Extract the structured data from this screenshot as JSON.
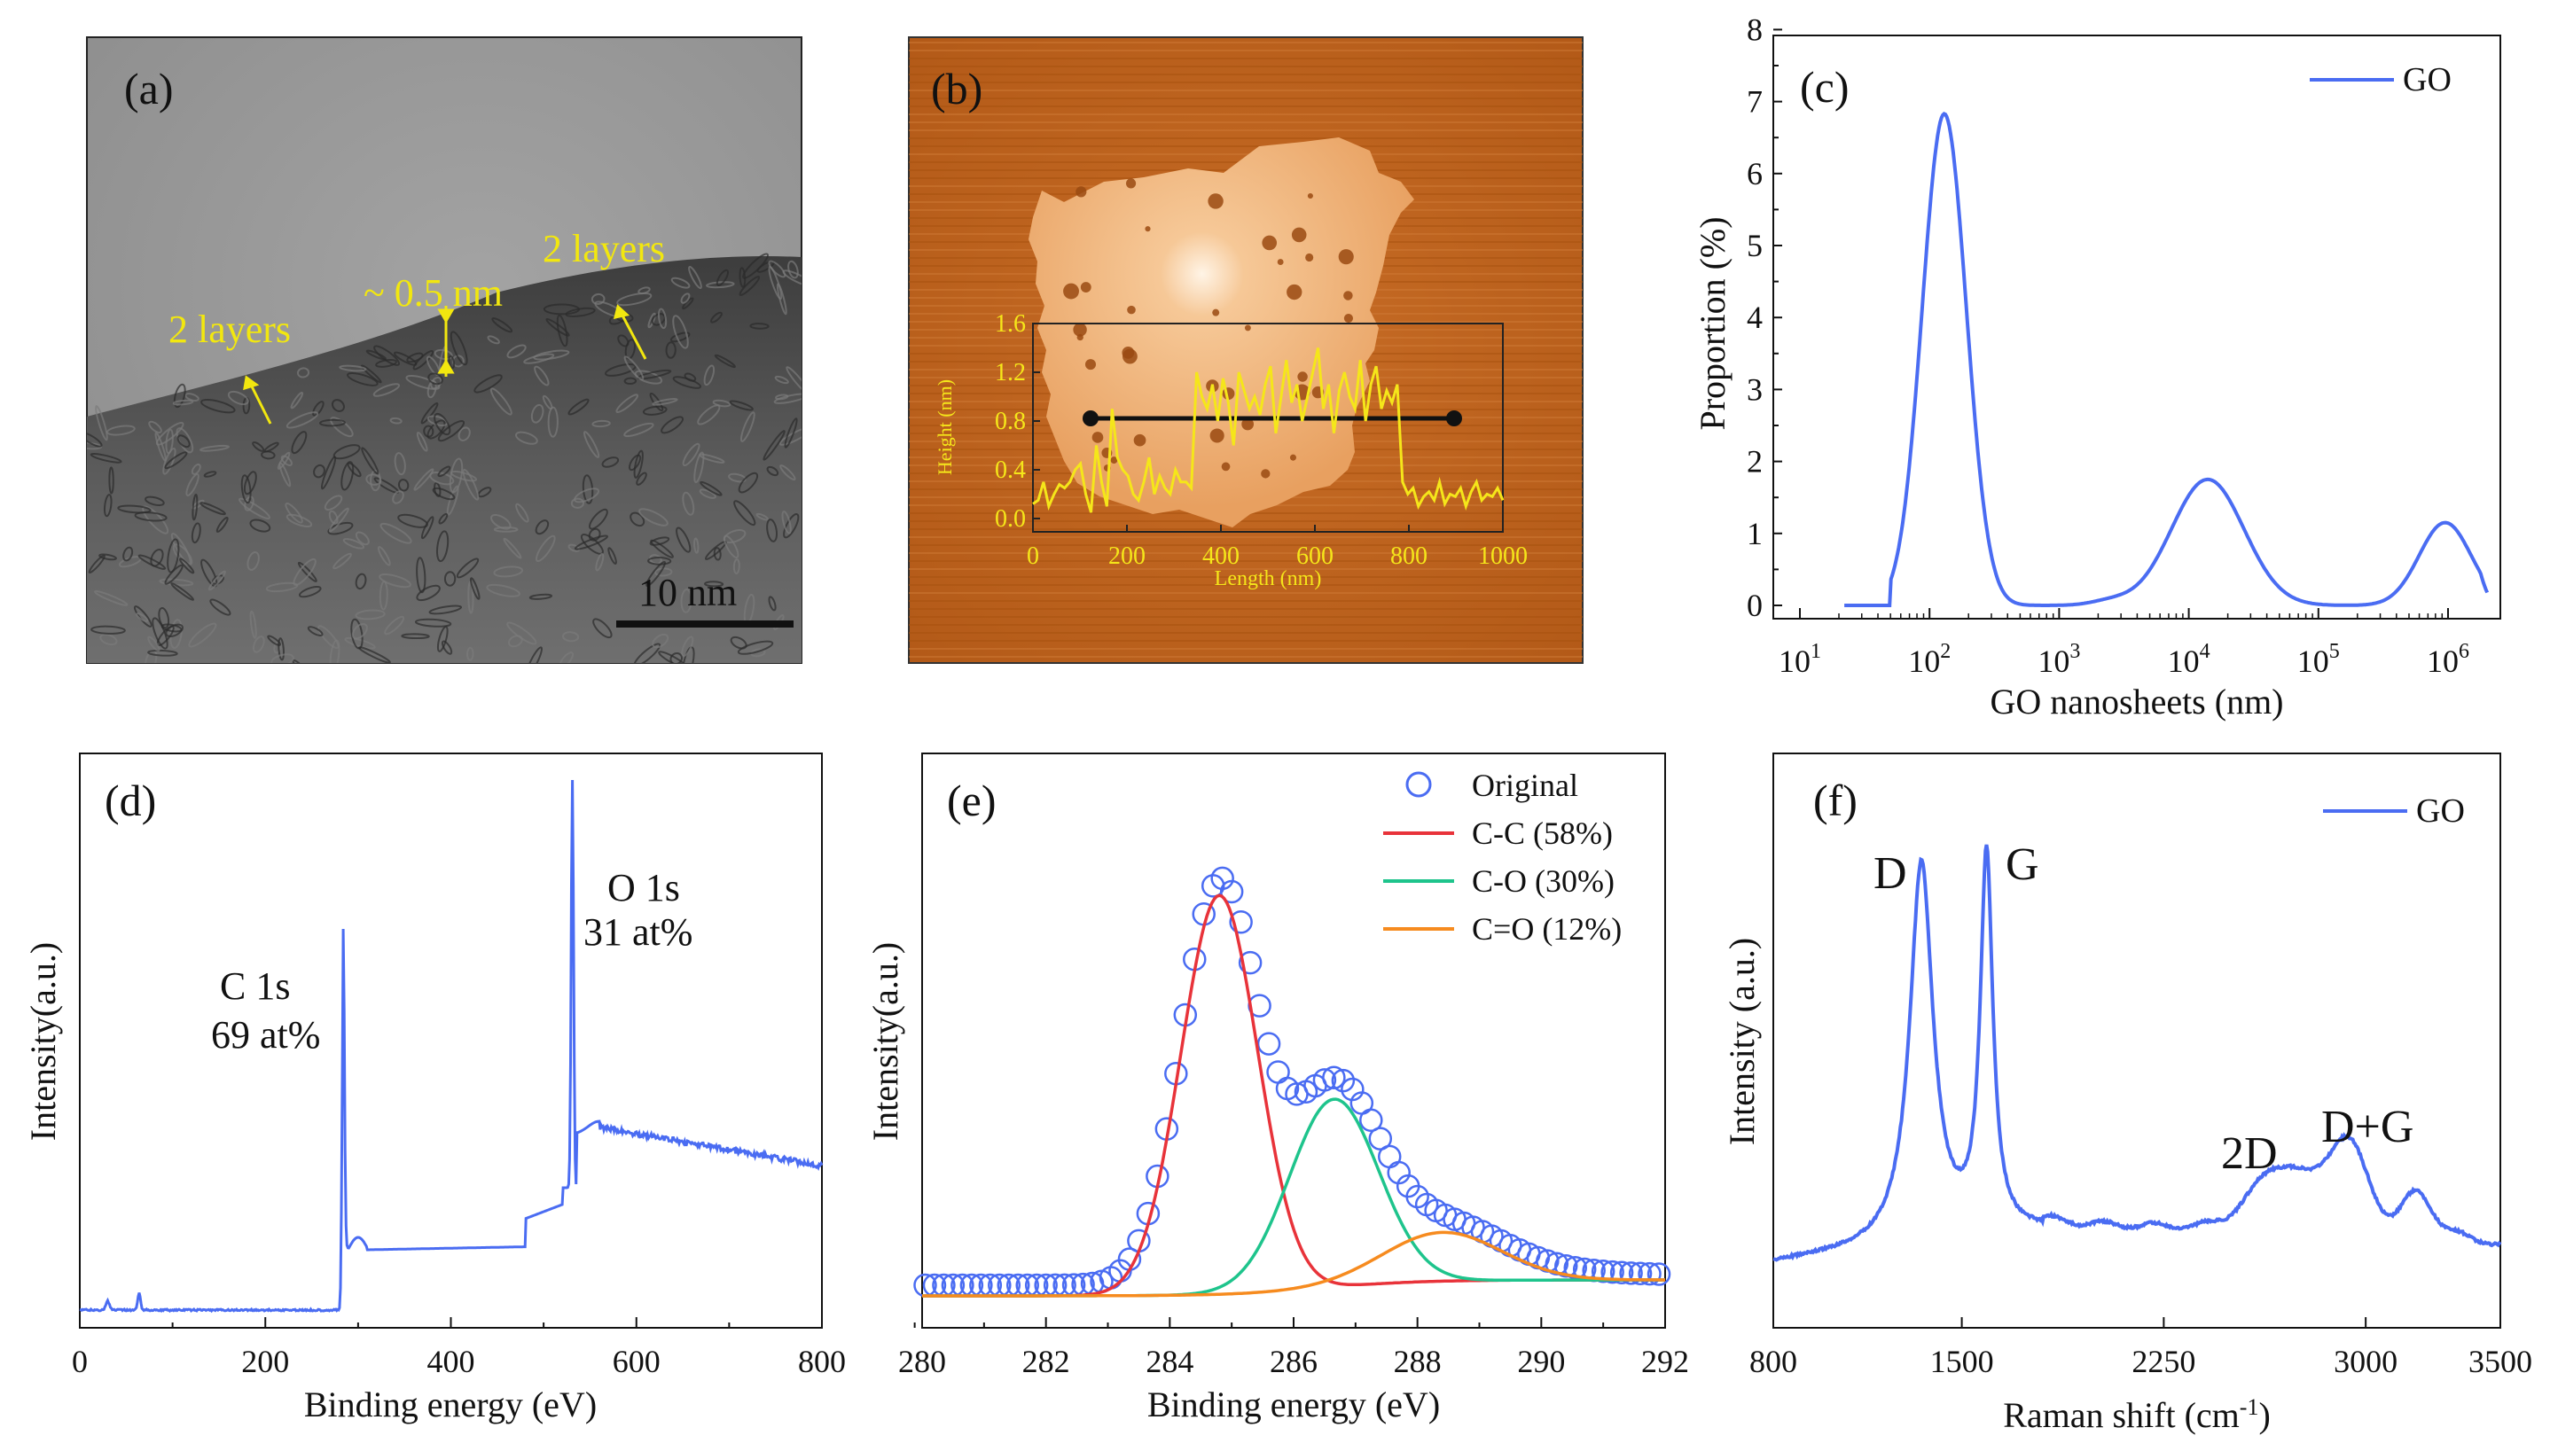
{
  "colors": {
    "blue": "#4a6cf2",
    "red": "#e8333a",
    "green": "#1ec48c",
    "orange": "#f68b1f",
    "yellow": "#f5e61a"
  },
  "panels": {
    "a": {
      "label": "(a)",
      "scale_bar": "10 nm",
      "annotations": [
        "2 layers",
        "~ 0.5 nm",
        "2 layers"
      ]
    },
    "b": {
      "label": "(b)",
      "inset": {
        "ylabel": "Height (nm)",
        "xlabel": "Length (nm)",
        "yticks": [
          "0.0",
          "0.4",
          "0.8",
          "1.2",
          "1.6"
        ],
        "xticks": [
          "0",
          "200",
          "400",
          "600",
          "800",
          "1000"
        ],
        "profile": [
          0.12,
          0.15,
          0.3,
          0.1,
          0.2,
          0.28,
          0.25,
          0.3,
          0.4,
          0.45,
          0.2,
          0.05,
          0.6,
          0.3,
          0.1,
          0.9,
          0.5,
          0.4,
          0.35,
          0.2,
          0.15,
          0.3,
          0.5,
          0.2,
          0.35,
          0.25,
          0.2,
          0.4,
          0.3,
          0.3,
          0.25,
          1.2,
          1.0,
          0.9,
          1.1,
          0.8,
          1.15,
          0.95,
          0.6,
          1.2,
          1.05,
          0.9,
          1.0,
          0.85,
          1.1,
          1.25,
          0.7,
          1.0,
          1.3,
          0.95,
          1.1,
          0.8,
          1.0,
          1.2,
          1.4,
          0.9,
          1.1,
          0.7,
          1.05,
          1.2,
          1.0,
          0.9,
          1.3,
          0.8,
          1.1,
          1.25,
          0.9,
          1.05,
          0.95,
          1.1,
          0.3,
          0.2,
          0.25,
          0.1,
          0.18,
          0.22,
          0.15,
          0.3,
          0.12,
          0.2,
          0.18,
          0.25,
          0.1,
          0.22,
          0.3,
          0.15,
          0.2,
          0.18,
          0.25,
          0.15
        ]
      }
    },
    "c": {
      "label": "(c)",
      "legend": "GO",
      "xlabel": "GO nanosheets (nm)",
      "ylabel": "Proportion (%)",
      "yticks": [
        "0",
        "1",
        "2",
        "3",
        "4",
        "5",
        "6",
        "7",
        "8"
      ],
      "xticks": [
        {
          "base": "10",
          "exp": "1"
        },
        {
          "base": "10",
          "exp": "2"
        },
        {
          "base": "10",
          "exp": "3"
        },
        {
          "base": "10",
          "exp": "4"
        },
        {
          "base": "10",
          "exp": "5"
        },
        {
          "base": "10",
          "exp": "6"
        }
      ]
    },
    "d": {
      "label": "(d)",
      "xlabel": "Binding energy (eV)",
      "ylabel": "Intensity(a.u.)",
      "xticks": [
        "0",
        "200",
        "400",
        "600",
        "800"
      ],
      "c1s_name": "C 1s",
      "c1s_value": "69 at%",
      "o1s_name": "O 1s",
      "o1s_value": "31 at%"
    },
    "e": {
      "label": "(e)",
      "xlabel": "Binding energy (eV)",
      "ylabel": "Intensity(a.u.)",
      "xticks": [
        "280",
        "282",
        "284",
        "286",
        "288",
        "290",
        "292"
      ],
      "legend": [
        "Original",
        "C-C (58%)",
        "C-O (30%)",
        "C=O (12%)"
      ]
    },
    "f": {
      "label": "(f)",
      "legend": "GO",
      "xlabel_main": "Raman shift (cm",
      "xlabel_sup": "-1",
      "xlabel_end": ")",
      "ylabel": "Intensity (a.u.)",
      "xticks": [
        "800",
        "1500",
        "2250",
        "3000",
        "3500"
      ],
      "peaks": [
        "D",
        "G",
        "2D",
        "D+G"
      ]
    }
  },
  "chart_data": [
    {
      "panel": "c",
      "type": "line",
      "xscale": "log",
      "xlim": [
        10,
        2000000
      ],
      "ylim": [
        0,
        8
      ],
      "series": [
        {
          "name": "GO",
          "peaks": [
            {
              "center": 130,
              "height": 6.83
            },
            {
              "center": 14000,
              "height": 1.75
            },
            {
              "center": 950000,
              "height": 1.15
            }
          ]
        }
      ]
    },
    {
      "panel": "d",
      "type": "line",
      "xlim": [
        0,
        800
      ],
      "peaks": [
        {
          "x": 284,
          "label": "C 1s 69 at%"
        },
        {
          "x": 531,
          "label": "O 1s 31 at%"
        }
      ]
    },
    {
      "panel": "e",
      "type": "line",
      "xlim": [
        280,
        292
      ],
      "series": [
        {
          "name": "C-C (58%)",
          "center": 284.8,
          "fraction": 0.58
        },
        {
          "name": "C-O (30%)",
          "center": 286.7,
          "fraction": 0.3
        },
        {
          "name": "C=O (12%)",
          "center": 288.4,
          "fraction": 0.12
        }
      ]
    },
    {
      "panel": "f",
      "type": "line",
      "xlim": [
        800,
        3500
      ],
      "peaks": [
        {
          "label": "D",
          "x": 1350
        },
        {
          "label": "G",
          "x": 1590
        },
        {
          "label": "2D",
          "x": 2700
        },
        {
          "label": "D+G",
          "x": 2930
        }
      ]
    }
  ]
}
